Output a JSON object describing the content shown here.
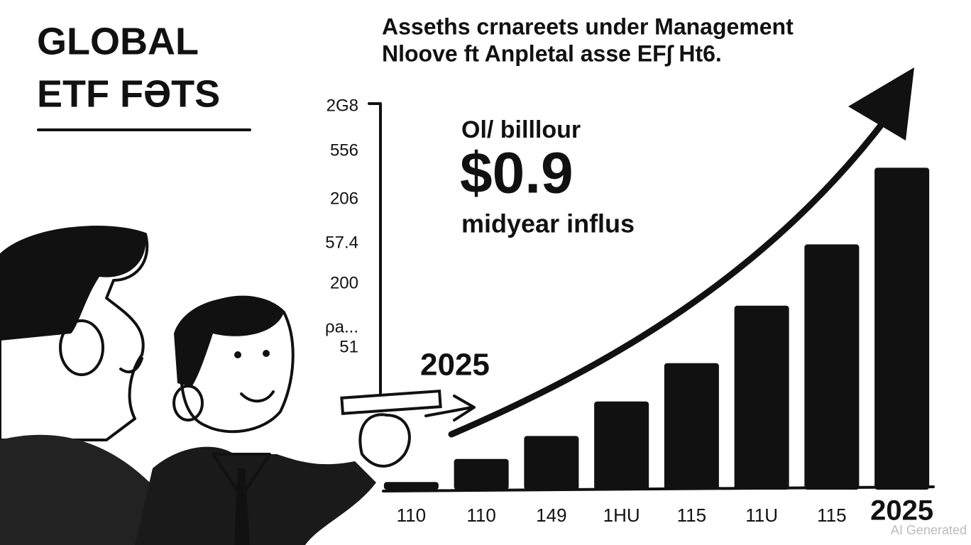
{
  "chart_data": {
    "type": "bar",
    "title": [
      "GLOBAL",
      "ETF FƏTS"
    ],
    "subtitle": [
      "Asseths crnareets under Management",
      "Nloove ft Anpletal asse EF∫ Ht6."
    ],
    "y_axis_labels": [
      "2G8",
      "556",
      "206",
      "57.4",
      "200",
      "ρa...",
      "51"
    ],
    "categories": [
      "110",
      "110",
      "149",
      "1HU",
      "115",
      "11U",
      "115",
      "2025"
    ],
    "values": [
      2,
      8,
      14,
      23,
      33,
      48,
      64,
      84
    ],
    "color": "#111111",
    "ylim": [
      0,
      100
    ],
    "annotations": [
      "Ol/ billlour",
      "$0.9",
      "midyear influs",
      "2025"
    ],
    "watermark": "AI Generated"
  }
}
